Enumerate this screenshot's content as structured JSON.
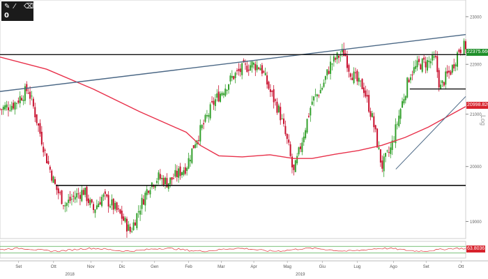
{
  "toolbar": {
    "icons": [
      "pencil-icon",
      "marker-icon",
      "eraser-icon"
    ],
    "counter": "0"
  },
  "chart_data": {
    "type": "candlestick",
    "y_scale": "log",
    "y_scale_label": "Log",
    "y_ticks": [
      19000,
      20000,
      21000,
      22000,
      23000
    ],
    "y_range": [
      18700,
      23300
    ],
    "x_labels": [
      "Set",
      "Ott",
      "Nov",
      "Dic",
      "Gen",
      "Feb",
      "Mar",
      "Apr",
      "Mag",
      "Giu",
      "Lug",
      "Ago",
      "Set",
      "Ott"
    ],
    "year_labels": [
      "2018",
      "2019"
    ],
    "last_price": "22375.66099",
    "ma_value": "20998.82003",
    "price_path": [
      [
        0,
        21100
      ],
      [
        0.03,
        21200
      ],
      [
        0.06,
        21500
      ],
      [
        0.07,
        21200
      ],
      [
        0.1,
        20150
      ],
      [
        0.12,
        19600
      ],
      [
        0.14,
        19300
      ],
      [
        0.16,
        19450
      ],
      [
        0.18,
        19550
      ],
      [
        0.2,
        19200
      ],
      [
        0.22,
        19450
      ],
      [
        0.24,
        19300
      ],
      [
        0.26,
        19100
      ],
      [
        0.28,
        18820
      ],
      [
        0.3,
        19250
      ],
      [
        0.32,
        19650
      ],
      [
        0.34,
        19800
      ],
      [
        0.36,
        19700
      ],
      [
        0.38,
        19850
      ],
      [
        0.4,
        20000
      ],
      [
        0.42,
        20500
      ],
      [
        0.44,
        20850
      ],
      [
        0.46,
        21250
      ],
      [
        0.48,
        21500
      ],
      [
        0.5,
        21750
      ],
      [
        0.52,
        21900
      ],
      [
        0.54,
        22000
      ],
      [
        0.56,
        21950
      ],
      [
        0.58,
        21450
      ],
      [
        0.6,
        21050
      ],
      [
        0.62,
        20350
      ],
      [
        0.63,
        19850
      ],
      [
        0.65,
        20550
      ],
      [
        0.67,
        21250
      ],
      [
        0.69,
        21500
      ],
      [
        0.71,
        22000
      ],
      [
        0.73,
        22200
      ],
      [
        0.74,
        22250
      ],
      [
        0.75,
        21900
      ],
      [
        0.77,
        21600
      ],
      [
        0.78,
        21550
      ],
      [
        0.8,
        20900
      ],
      [
        0.82,
        20000
      ],
      [
        0.84,
        20350
      ],
      [
        0.86,
        21100
      ],
      [
        0.88,
        21800
      ],
      [
        0.9,
        22000
      ],
      [
        0.92,
        22050
      ],
      [
        0.935,
        22100
      ],
      [
        0.945,
        21500
      ],
      [
        0.955,
        21700
      ],
      [
        0.97,
        21900
      ],
      [
        0.985,
        22300
      ],
      [
        1.0,
        22380
      ]
    ],
    "moving_average": [
      [
        0,
        22150
      ],
      [
        0.1,
        21900
      ],
      [
        0.2,
        21500
      ],
      [
        0.3,
        21050
      ],
      [
        0.4,
        20650
      ],
      [
        0.43,
        20400
      ],
      [
        0.47,
        20200
      ],
      [
        0.52,
        20180
      ],
      [
        0.58,
        20220
      ],
      [
        0.63,
        20150
      ],
      [
        0.67,
        20150
      ],
      [
        0.72,
        20230
      ],
      [
        0.77,
        20300
      ],
      [
        0.82,
        20400
      ],
      [
        0.87,
        20550
      ],
      [
        0.92,
        20750
      ],
      [
        0.96,
        20950
      ],
      [
        1.0,
        21150
      ]
    ],
    "lines": {
      "trendline": [
        [
          0,
          21450
        ],
        [
          1.0,
          22620
        ]
      ],
      "resistance": 22200,
      "support": 19650,
      "short_resistance": [
        [
          0.88,
          21500
        ],
        [
          1.0,
          21500
        ]
      ],
      "up_trend": [
        [
          0.85,
          19950
        ],
        [
          1.0,
          21350
        ]
      ]
    },
    "oscillator": {
      "value_label": "63.8036",
      "levels": [
        70,
        30
      ]
    },
    "colors": {
      "up": "#33a02c",
      "down": "#c8102e",
      "ma": "#e8304a",
      "trend": "#4a6785",
      "tag_green": "#1f8f2a",
      "tag_red": "#d7212b"
    }
  }
}
